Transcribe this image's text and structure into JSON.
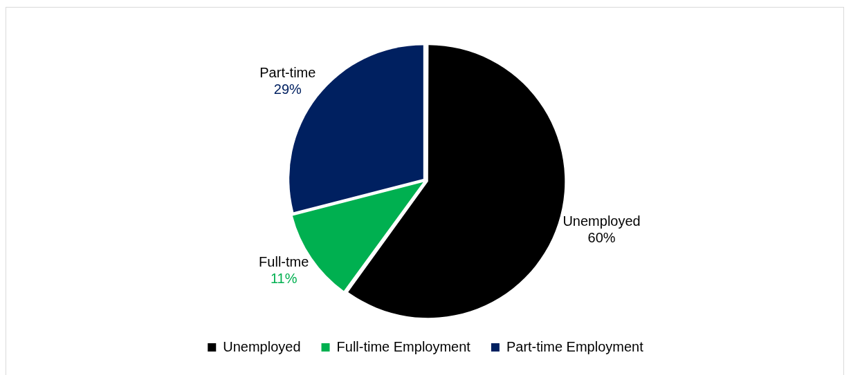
{
  "chart_data": {
    "type": "pie",
    "categories": [
      "Unemployed",
      "Full-time Employment",
      "Part-time Employment"
    ],
    "values": [
      60,
      11,
      29
    ],
    "colors": [
      "#000000",
      "#00b050",
      "#002060"
    ],
    "value_labels": [
      "Unemployed\n60%",
      "Full-tme\n11%",
      "Part-time\n29%"
    ],
    "legend": "bottom"
  }
}
